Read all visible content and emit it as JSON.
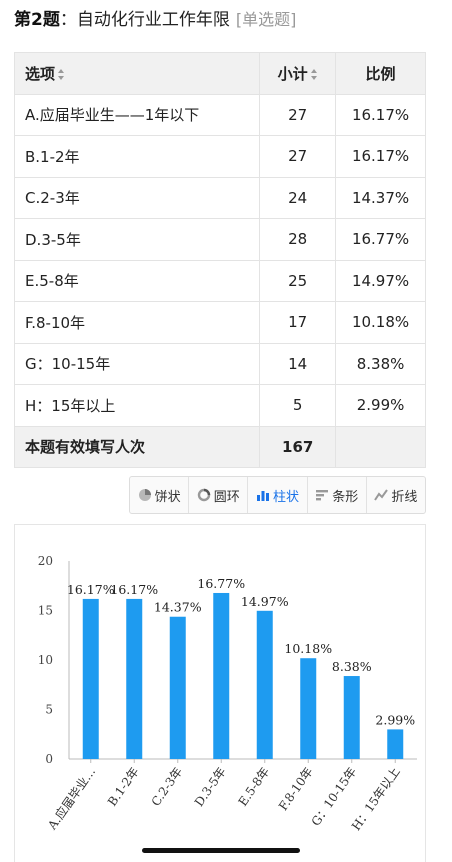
{
  "question": {
    "number": "第2题",
    "text": "自动化行业工作年限",
    "type": "[单选题]"
  },
  "table": {
    "headers": {
      "option": "选项",
      "count": "小计",
      "ratio": "比例"
    },
    "rows": [
      {
        "option": "A.应届毕业生——1年以下",
        "count": "27",
        "ratio": "16.17%"
      },
      {
        "option": "B.1-2年",
        "count": "27",
        "ratio": "16.17%"
      },
      {
        "option": "C.2-3年",
        "count": "24",
        "ratio": "14.37%"
      },
      {
        "option": "D.3-5年",
        "count": "28",
        "ratio": "16.77%"
      },
      {
        "option": "E.5-8年",
        "count": "25",
        "ratio": "14.97%"
      },
      {
        "option": "F.8-10年",
        "count": "17",
        "ratio": "10.18%"
      },
      {
        "option": "G：10-15年",
        "count": "14",
        "ratio": "8.38%"
      },
      {
        "option": "H：15年以上",
        "count": "5",
        "ratio": "2.99%"
      }
    ],
    "total": {
      "label": "本题有效填写人次",
      "count": "167",
      "ratio": ""
    }
  },
  "chart_tabs": [
    {
      "label": "饼状",
      "icon": "pie-icon",
      "active": false
    },
    {
      "label": "圆环",
      "icon": "ring-icon",
      "active": false
    },
    {
      "label": "柱状",
      "icon": "bar-chart-icon",
      "active": true
    },
    {
      "label": "条形",
      "icon": "horizontal-bar-icon",
      "active": false
    },
    {
      "label": "折线",
      "icon": "line-chart-icon",
      "active": false
    }
  ],
  "colors": {
    "accent": "#1a73e8",
    "bar": "#1e9bf0"
  },
  "chart_data": {
    "type": "bar",
    "categories": [
      "A.应届毕业…",
      "B.1-2年",
      "C.2-3年",
      "D.3-5年",
      "E.5-8年",
      "F.8-10年",
      "G：10-15年",
      "H：15年以上"
    ],
    "values": [
      16.17,
      16.17,
      14.37,
      16.77,
      14.97,
      10.18,
      8.38,
      2.99
    ],
    "data_labels": [
      "16.17%",
      "16.17%",
      "14.37%",
      "16.77%",
      "14.97%",
      "10.18%",
      "8.38%",
      "2.99%"
    ],
    "yticks": [
      "0",
      "5",
      "10",
      "15",
      "20"
    ],
    "ylim": [
      0,
      20
    ],
    "title": "",
    "xlabel": "",
    "ylabel": "",
    "grid": false
  }
}
